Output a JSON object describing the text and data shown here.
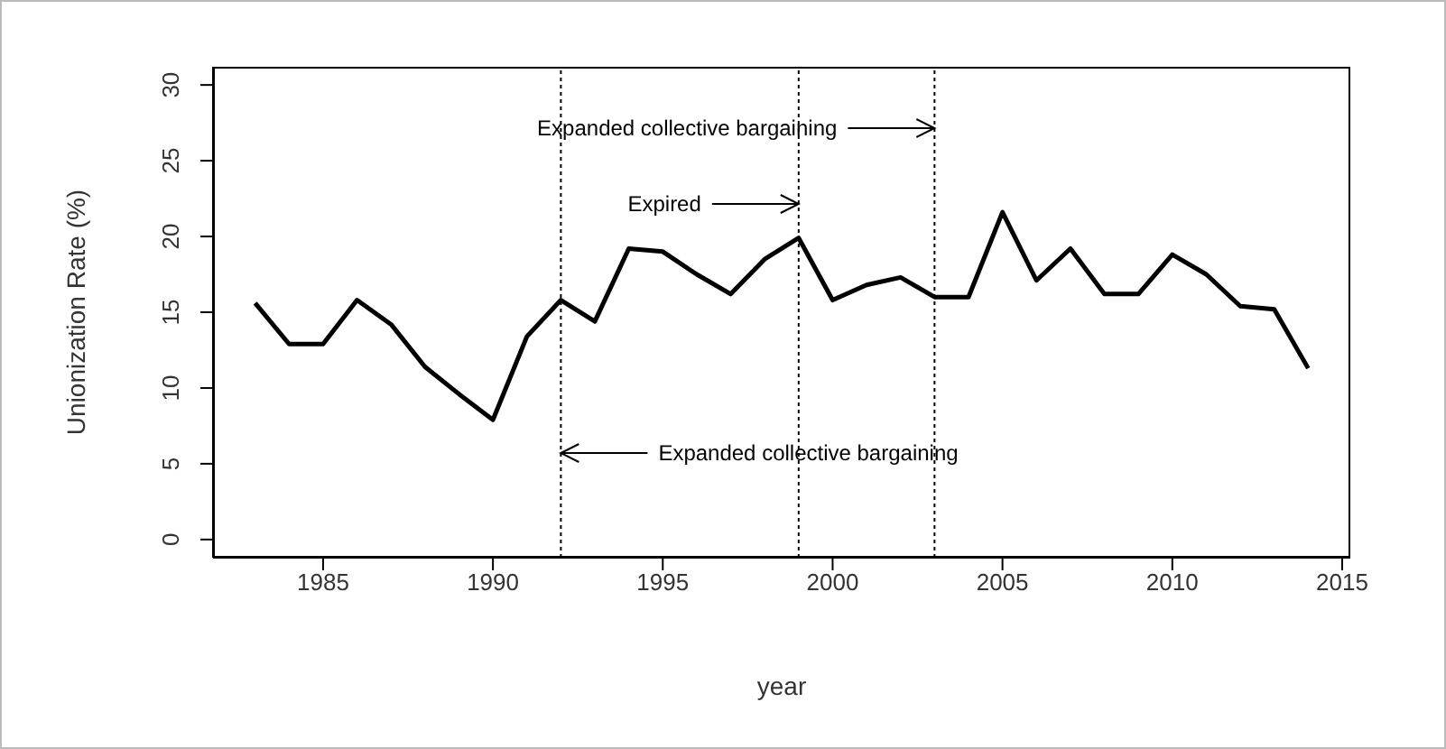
{
  "chart_data": {
    "type": "line",
    "xlabel": "year",
    "ylabel": "Unionization Rate (%)",
    "x": [
      1983,
      1984,
      1985,
      1986,
      1987,
      1988,
      1989,
      1990,
      1991,
      1992,
      1993,
      1994,
      1995,
      1996,
      1997,
      1998,
      1999,
      2000,
      2001,
      2002,
      2003,
      2004,
      2005,
      2006,
      2007,
      2008,
      2009,
      2010,
      2011,
      2012,
      2013,
      2014
    ],
    "series": [
      {
        "color": "#000000",
        "values": [
          15.6,
          12.9,
          12.9,
          15.8,
          14.2,
          11.4,
          9.6,
          7.9,
          13.4,
          15.8,
          14.4,
          19.2,
          19.0,
          17.5,
          16.2,
          18.5,
          19.9,
          15.8,
          16.8,
          17.3,
          16.0,
          16.0,
          21.6,
          17.1,
          19.2,
          16.2,
          16.2,
          18.8,
          17.5,
          15.4,
          15.2,
          11.3
        ]
      }
    ],
    "xlim": [
      1981.76,
      2015.24
    ],
    "xticks": [
      1985,
      1990,
      1995,
      2000,
      2005,
      2010,
      2015
    ],
    "ylim": [
      -1.2,
      31.2
    ],
    "yticks": [
      0,
      5,
      10,
      15,
      20,
      25,
      30
    ],
    "ref_lines": [
      {
        "axis": "x",
        "value": 1992,
        "line_style": "dotted",
        "color": "#000000",
        "label": "Expanded collective bargaining"
      },
      {
        "axis": "x",
        "value": 1999,
        "line_style": "dotted",
        "color": "#000000",
        "label": "Expired"
      },
      {
        "axis": "x",
        "value": 2003,
        "line_style": "dotted",
        "color": "#000000",
        "label": "Expanded collective bargaining"
      }
    ],
    "marker": "none",
    "line_style": "solid",
    "grid": false,
    "legend": false
  }
}
